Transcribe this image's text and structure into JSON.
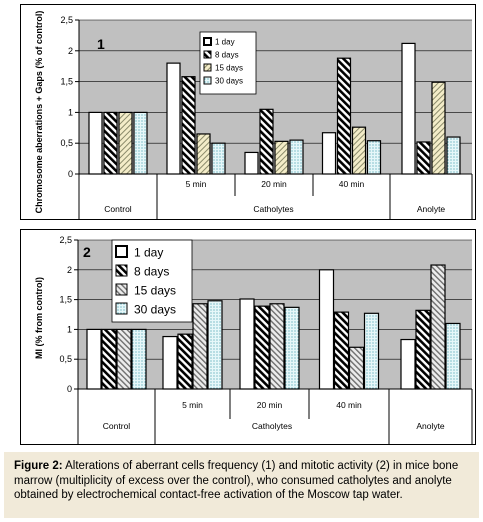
{
  "chart_data": [
    {
      "type": "bar",
      "panel_label": "1",
      "ylabel": "Chromosome aberrations + Gaps (% of control)",
      "ylim": [
        0,
        2.5
      ],
      "yticks": [
        "0",
        "0,5",
        "1",
        "1,5",
        "2",
        "2,5"
      ],
      "grid": true,
      "legend_position": "top-center",
      "categories": [
        "Control",
        "5 min",
        "20 min",
        "40 min",
        "Anolyte"
      ],
      "group_labels": [
        "Control",
        "Catholytes",
        "Anolyte"
      ],
      "series": [
        {
          "name": "1 day",
          "values": [
            1.0,
            1.8,
            0.35,
            0.67,
            2.12
          ]
        },
        {
          "name": "8 days",
          "values": [
            1.0,
            1.58,
            1.05,
            1.88,
            0.52
          ]
        },
        {
          "name": "15 days",
          "values": [
            1.0,
            0.65,
            0.53,
            0.76,
            1.49
          ]
        },
        {
          "name": "30 days",
          "values": [
            1.0,
            0.5,
            0.55,
            0.54,
            0.6
          ]
        }
      ]
    },
    {
      "type": "bar",
      "panel_label": "2",
      "ylabel": "MI (% from control)",
      "ylim": [
        0,
        2.5
      ],
      "yticks": [
        "0",
        "0,5",
        "1",
        "1,5",
        "2",
        "2,5"
      ],
      "grid": true,
      "legend_position": "top-left",
      "categories": [
        "Control",
        "5 min",
        "20 min",
        "40 min",
        "Anolyte"
      ],
      "group_labels": [
        "Control",
        "Catholytes",
        "Anolyte"
      ],
      "series": [
        {
          "name": "1 day",
          "values": [
            1.0,
            0.88,
            1.51,
            2.0,
            0.83
          ]
        },
        {
          "name": "8 days",
          "values": [
            1.0,
            0.92,
            1.39,
            1.29,
            1.32
          ]
        },
        {
          "name": "15 days",
          "values": [
            1.0,
            1.43,
            1.43,
            0.7,
            2.08
          ]
        },
        {
          "name": "30 days",
          "values": [
            1.0,
            1.48,
            1.37,
            1.27,
            1.1
          ]
        }
      ]
    }
  ],
  "caption": {
    "label": "Figure 2:",
    "text": "Alterations of aberrant cells frequency (1) and mitotic activity (2) in mice bone marrow (multiplicity of excess over the control), who consumed catholytes and anolyte obtained by electrochemical contact-free activation of the Moscow tap water."
  }
}
